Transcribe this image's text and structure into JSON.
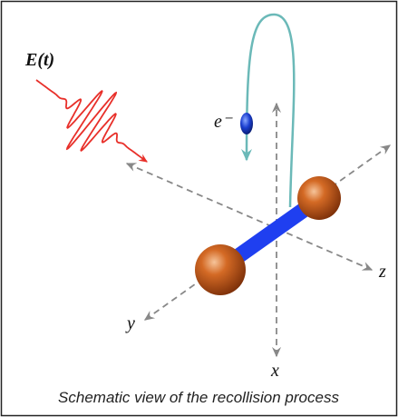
{
  "labels": {
    "field": "E(t)",
    "electron": "e⁻",
    "x": "x",
    "y": "y",
    "z": "z"
  },
  "caption": "Schematic view of the recollision process"
}
